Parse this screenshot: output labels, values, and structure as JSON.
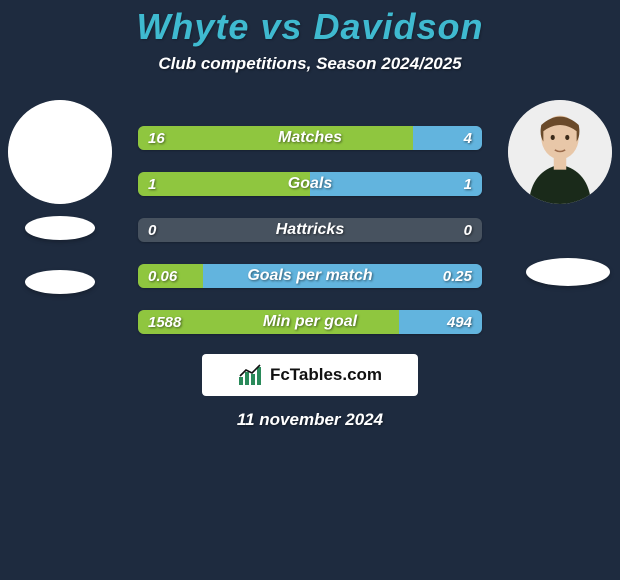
{
  "background_color": "#1e2b3f",
  "title": {
    "text": "Whyte vs Davidson",
    "color": "#3fbad0",
    "fontsize": 36
  },
  "subtitle": {
    "text": "Club competitions, Season 2024/2025",
    "color": "#ffffff",
    "fontsize": 17
  },
  "players": {
    "left": {
      "name": "Whyte",
      "avatar_bg": "#ffffff",
      "has_photo": false,
      "flag_bg": "#ffffff"
    },
    "right": {
      "name": "Davidson",
      "avatar_bg": "#eeeeee",
      "has_photo": true,
      "flag_bg": "#ffffff"
    }
  },
  "bars": {
    "left_color": "#8fc63f",
    "right_color": "#62b4de",
    "neutral_color": "#47525f",
    "label_fontsize": 16,
    "value_fontsize": 15,
    "rows": [
      {
        "label": "Matches",
        "left_val": "16",
        "right_val": "4",
        "left_pct": 80,
        "right_pct": 20
      },
      {
        "label": "Goals",
        "left_val": "1",
        "right_val": "1",
        "left_pct": 50,
        "right_pct": 50
      },
      {
        "label": "Hattricks",
        "left_val": "0",
        "right_val": "0",
        "left_pct": 0,
        "right_pct": 0
      },
      {
        "label": "Goals per match",
        "left_val": "0.06",
        "right_val": "0.25",
        "left_pct": 19,
        "right_pct": 81
      },
      {
        "label": "Min per goal",
        "left_val": "1588",
        "right_val": "494",
        "left_pct": 76,
        "right_pct": 24
      }
    ]
  },
  "logo": {
    "bg": "#ffffff",
    "text": "FcTables.com",
    "text_color": "#111111"
  },
  "date": {
    "text": "11 november 2024",
    "color": "#ffffff",
    "fontsize": 17
  }
}
